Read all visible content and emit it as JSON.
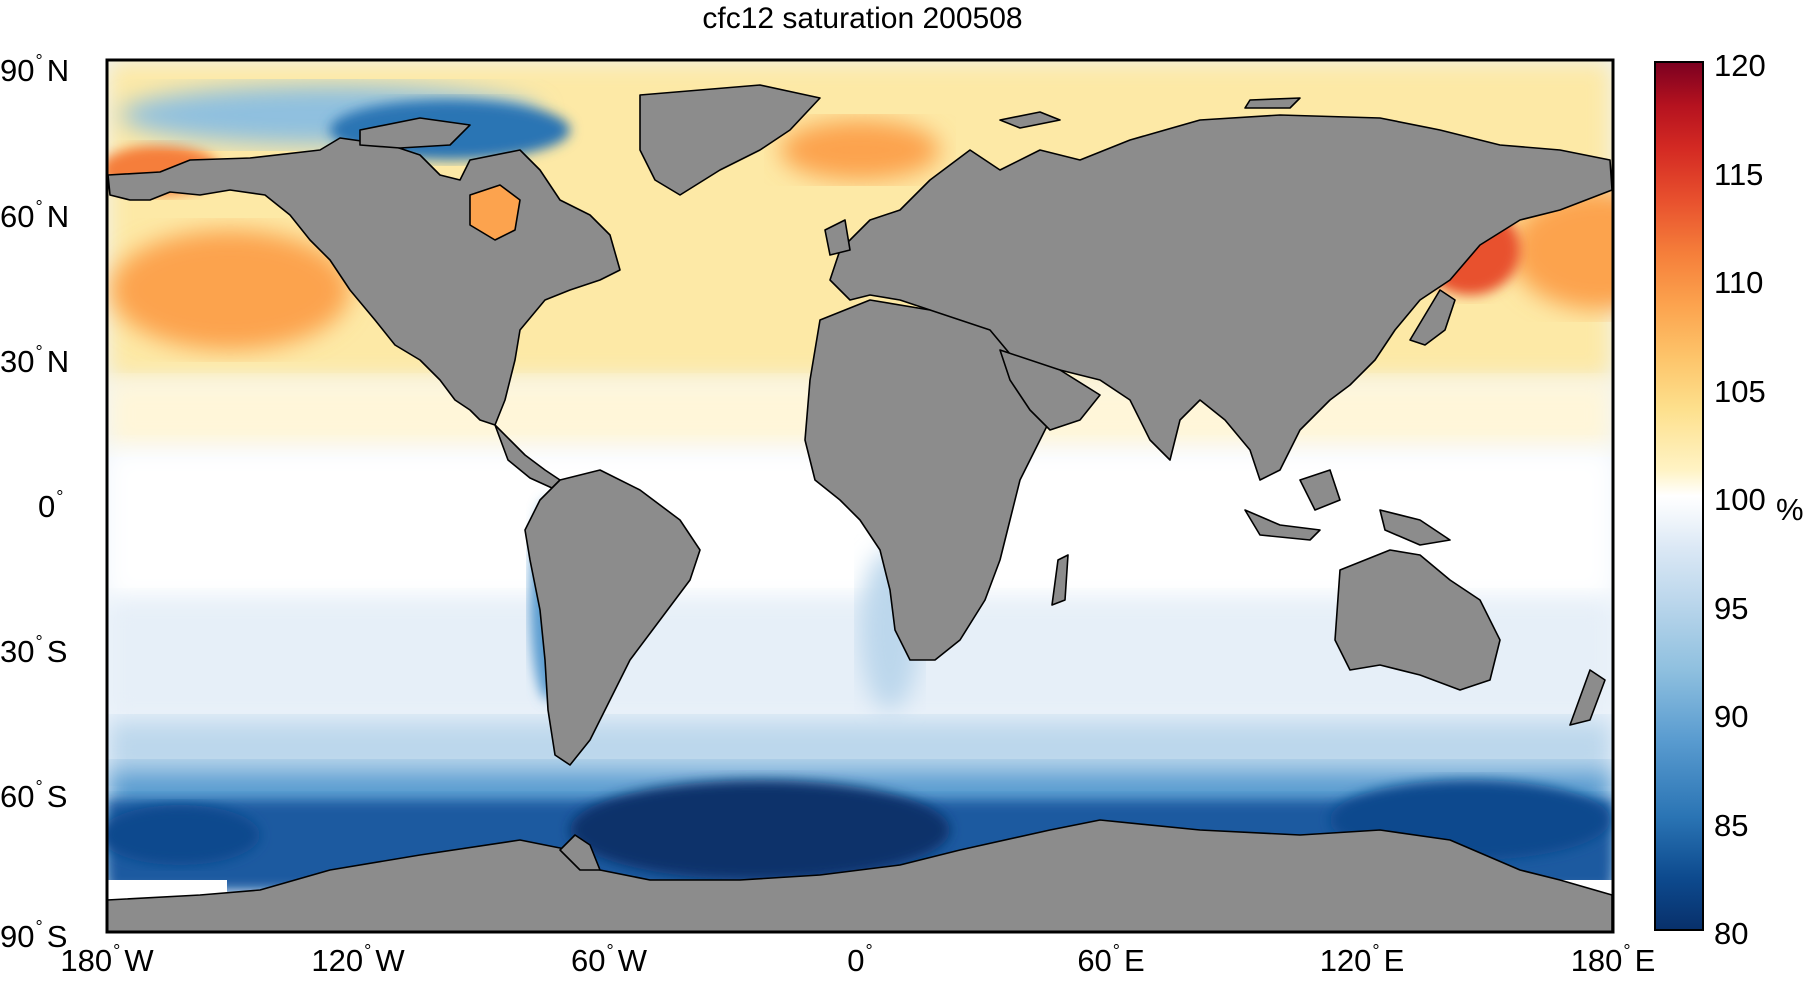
{
  "title": "cfc12 saturation 200508",
  "y_ticks": [
    {
      "deg": "90",
      "hemi": "N"
    },
    {
      "deg": "60",
      "hemi": "N"
    },
    {
      "deg": "30",
      "hemi": "N"
    },
    {
      "deg": "0",
      "hemi": ""
    },
    {
      "deg": "30",
      "hemi": "S"
    },
    {
      "deg": "60",
      "hemi": "S"
    },
    {
      "deg": "90",
      "hemi": "S"
    }
  ],
  "x_ticks": [
    {
      "deg": "180",
      "hemi": "W"
    },
    {
      "deg": "120",
      "hemi": "W"
    },
    {
      "deg": "60",
      "hemi": "W"
    },
    {
      "deg": "0",
      "hemi": ""
    },
    {
      "deg": "60",
      "hemi": "E"
    },
    {
      "deg": "120",
      "hemi": "E"
    },
    {
      "deg": "180",
      "hemi": "E"
    }
  ],
  "colorbar": {
    "ticks": [
      "120",
      "115",
      "110",
      "105",
      "100",
      "95",
      "90",
      "85",
      "80"
    ],
    "unit": "%",
    "range": [
      80,
      120
    ],
    "colors_low": [
      "#08306b",
      "#0d4a8e",
      "#2a74b4",
      "#5a9cd0",
      "#8fc0df",
      "#bcd7ec",
      "#dbe8f5",
      "#eef4fb",
      "#ffffff"
    ],
    "colors_high": [
      "#ffffff",
      "#fff3c4",
      "#fde08d",
      "#fdc46a",
      "#fca34e",
      "#f57e3a",
      "#e8512e",
      "#d42a23",
      "#9e0a1f",
      "#7b0020"
    ]
  },
  "map": {
    "extent_lon": [
      -180,
      180
    ],
    "extent_lat": [
      -90,
      90
    ],
    "land_color": "#8c8c8c",
    "coast_color": "#000000"
  }
}
